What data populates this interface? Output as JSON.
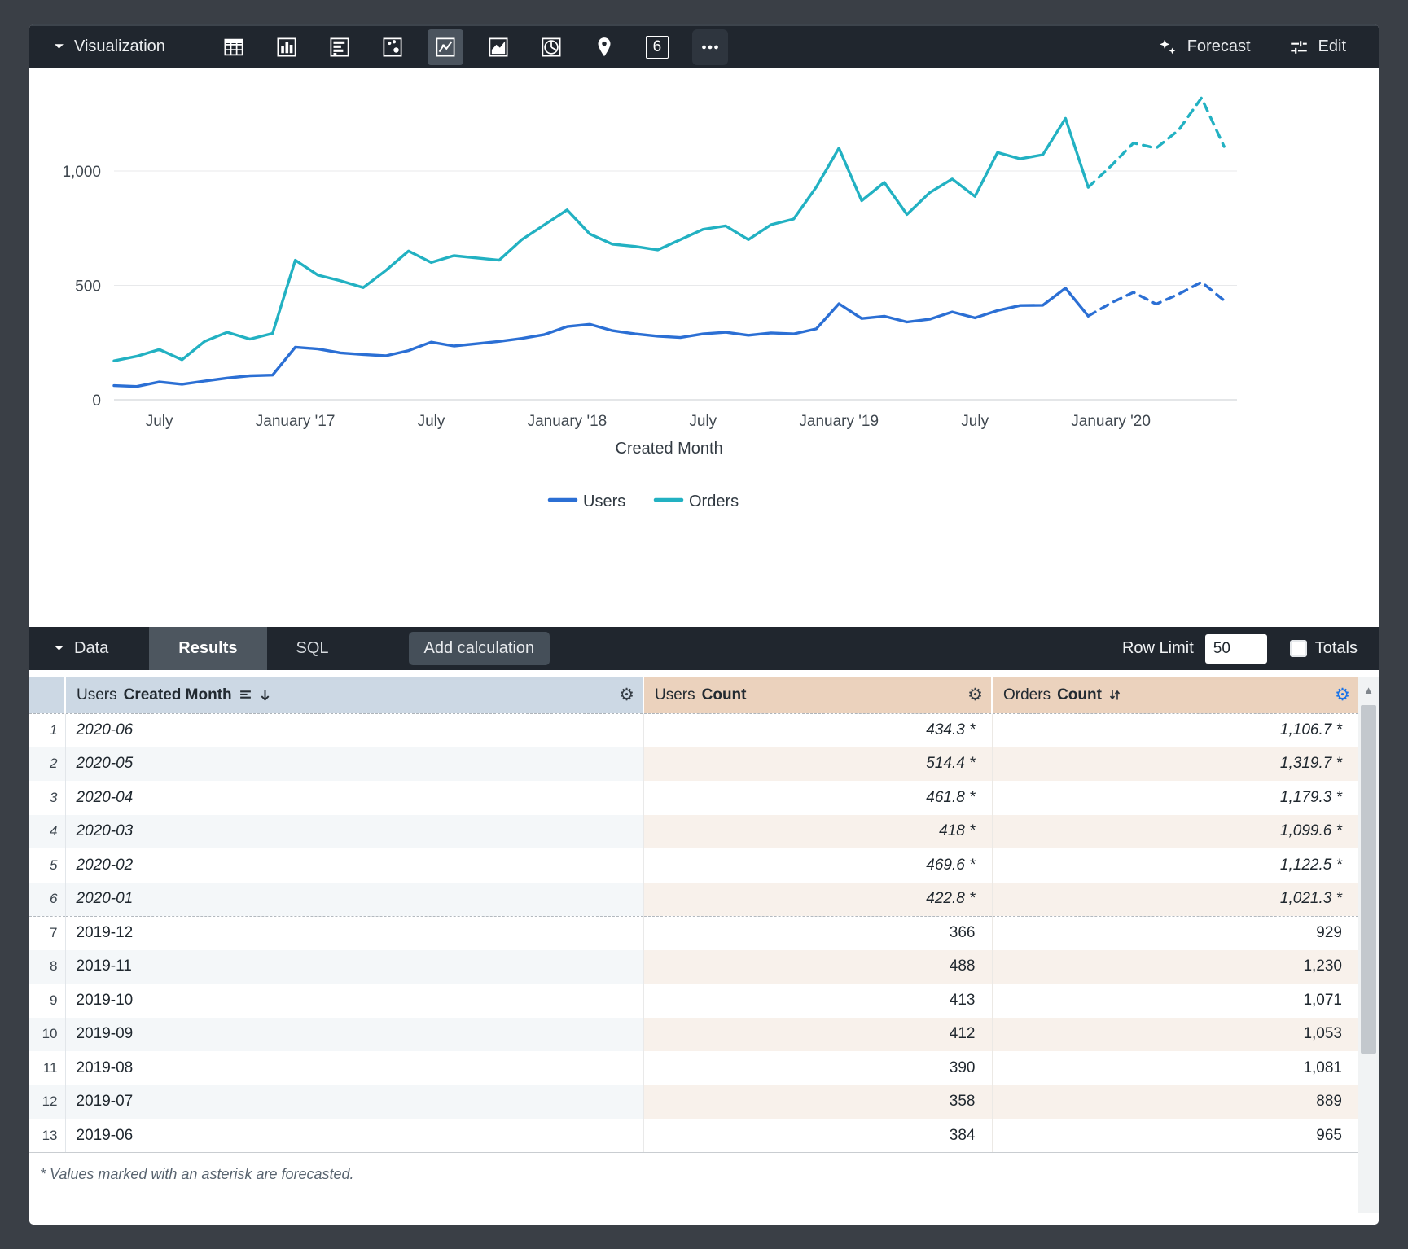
{
  "toolbar": {
    "section_label": "Visualization",
    "icons": [
      "table",
      "column-chart",
      "bar-chart",
      "scatter",
      "line-chart",
      "area-chart",
      "pie-chart",
      "map-pin",
      "single-value",
      "more"
    ],
    "selected_icon": "line-chart",
    "single_value_label": "6",
    "forecast_label": "Forecast",
    "edit_label": "Edit"
  },
  "chart_data": {
    "type": "line",
    "title": "",
    "xlabel": "Created Month",
    "ylabel": "",
    "ylim": [
      0,
      1400
    ],
    "yticks": [
      0,
      500,
      1000
    ],
    "grid": "horizontal",
    "legend_position": "bottom",
    "forecast_from_index": 44,
    "x": [
      "2016-05",
      "2016-06",
      "2016-07",
      "2016-08",
      "2016-09",
      "2016-10",
      "2016-11",
      "2016-12",
      "2017-01",
      "2017-02",
      "2017-03",
      "2017-04",
      "2017-05",
      "2017-06",
      "2017-07",
      "2017-08",
      "2017-09",
      "2017-10",
      "2017-11",
      "2017-12",
      "2018-01",
      "2018-02",
      "2018-03",
      "2018-04",
      "2018-05",
      "2018-06",
      "2018-07",
      "2018-08",
      "2018-09",
      "2018-10",
      "2018-11",
      "2018-12",
      "2019-01",
      "2019-02",
      "2019-03",
      "2019-04",
      "2019-05",
      "2019-06",
      "2019-07",
      "2019-08",
      "2019-09",
      "2019-10",
      "2019-11",
      "2019-12",
      "2020-01",
      "2020-02",
      "2020-03",
      "2020-04",
      "2020-05",
      "2020-06"
    ],
    "xticks": [
      {
        "index": 2,
        "label": "July"
      },
      {
        "index": 8,
        "label": "January '17"
      },
      {
        "index": 14,
        "label": "July"
      },
      {
        "index": 20,
        "label": "January '18"
      },
      {
        "index": 26,
        "label": "July"
      },
      {
        "index": 32,
        "label": "January '19"
      },
      {
        "index": 38,
        "label": "July"
      },
      {
        "index": 44,
        "label": "January '20"
      }
    ],
    "series": [
      {
        "name": "Users",
        "color": "#2b6fd4",
        "values": [
          62,
          58,
          78,
          68,
          82,
          95,
          105,
          108,
          230,
          222,
          205,
          198,
          192,
          215,
          252,
          235,
          245,
          255,
          268,
          285,
          320,
          330,
          302,
          288,
          278,
          272,
          288,
          295,
          282,
          292,
          288,
          310,
          420,
          355,
          365,
          340,
          352,
          384,
          358,
          390,
          412,
          413,
          488,
          366,
          422.8,
          469.6,
          418,
          461.8,
          514.4,
          434.3
        ]
      },
      {
        "name": "Orders",
        "color": "#22b1c2",
        "values": [
          170,
          190,
          220,
          175,
          255,
          295,
          265,
          290,
          610,
          545,
          520,
          490,
          565,
          650,
          600,
          630,
          620,
          610,
          700,
          765,
          830,
          725,
          680,
          670,
          655,
          700,
          745,
          760,
          700,
          765,
          790,
          930,
          1100,
          870,
          950,
          810,
          905,
          965,
          889,
          1081,
          1053,
          1071,
          1230,
          929,
          1021.3,
          1122.5,
          1099.6,
          1179.3,
          1319.7,
          1106.7
        ]
      }
    ]
  },
  "data_bar": {
    "section_label": "Data",
    "tabs": [
      {
        "label": "Results",
        "active": true
      },
      {
        "label": "SQL",
        "active": false
      }
    ],
    "add_calculation_label": "Add calculation",
    "row_limit_label": "Row Limit",
    "row_limit_value": "50",
    "totals_label": "Totals"
  },
  "table": {
    "columns": [
      {
        "key": "row_number",
        "prefix": "",
        "label": "",
        "type": "index"
      },
      {
        "key": "created_month",
        "prefix": "Users",
        "label": "Created Month",
        "type": "dimension",
        "sorted": "desc"
      },
      {
        "key": "users_count",
        "prefix": "Users",
        "label": "Count",
        "type": "measure"
      },
      {
        "key": "orders_count",
        "prefix": "Orders",
        "label": "Count",
        "type": "measure",
        "sorted": "desc"
      }
    ],
    "rows": [
      {
        "n": "1",
        "month": "2020-06",
        "users": "434.3 *",
        "orders": "1,106.7 *",
        "forecast": true
      },
      {
        "n": "2",
        "month": "2020-05",
        "users": "514.4 *",
        "orders": "1,319.7 *",
        "forecast": true
      },
      {
        "n": "3",
        "month": "2020-04",
        "users": "461.8 *",
        "orders": "1,179.3 *",
        "forecast": true
      },
      {
        "n": "4",
        "month": "2020-03",
        "users": "418 *",
        "orders": "1,099.6 *",
        "forecast": true
      },
      {
        "n": "5",
        "month": "2020-02",
        "users": "469.6 *",
        "orders": "1,122.5 *",
        "forecast": true
      },
      {
        "n": "6",
        "month": "2020-01",
        "users": "422.8 *",
        "orders": "1,021.3 *",
        "forecast": true
      },
      {
        "n": "7",
        "month": "2019-12",
        "users": "366",
        "orders": "929",
        "forecast": false
      },
      {
        "n": "8",
        "month": "2019-11",
        "users": "488",
        "orders": "1,230",
        "forecast": false
      },
      {
        "n": "9",
        "month": "2019-10",
        "users": "413",
        "orders": "1,071",
        "forecast": false
      },
      {
        "n": "10",
        "month": "2019-09",
        "users": "412",
        "orders": "1,053",
        "forecast": false
      },
      {
        "n": "11",
        "month": "2019-08",
        "users": "390",
        "orders": "1,081",
        "forecast": false
      },
      {
        "n": "12",
        "month": "2019-07",
        "users": "358",
        "orders": "889",
        "forecast": false
      },
      {
        "n": "13",
        "month": "2019-06",
        "users": "384",
        "orders": "965",
        "forecast": false
      }
    ],
    "footnote": "* Values marked with an asterisk are forecasted."
  },
  "colors": {
    "users_series": "#2b6fd4",
    "orders_series": "#22b1c2",
    "topbar_bg": "#20262e",
    "active_tab_bg": "#4d565f",
    "dimension_header_bg": "#ccd8e4",
    "measure_header_bg": "#ebd2bd",
    "gear_active": "#1a73e8"
  }
}
